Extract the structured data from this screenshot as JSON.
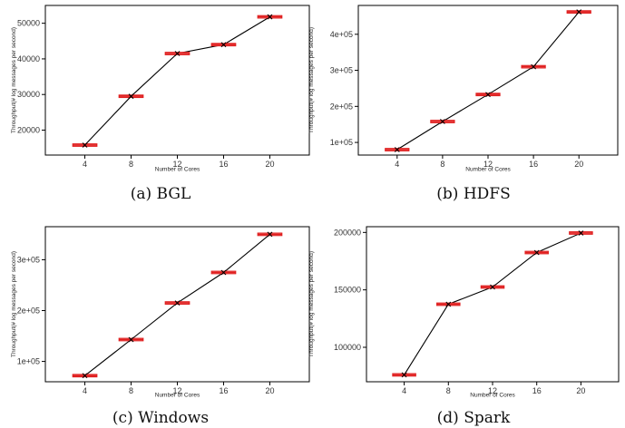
{
  "figure": {
    "panels": [
      {
        "id": "a",
        "caption": "(a) BGL"
      },
      {
        "id": "b",
        "caption": "(b) HDFS"
      },
      {
        "id": "c",
        "caption": "(c) Windows"
      },
      {
        "id": "d",
        "caption": "(d) Spark"
      }
    ]
  },
  "chart_data": [
    {
      "type": "box",
      "title": "",
      "caption": "(a) BGL",
      "xlabel": "Number of Cores",
      "ylabel": "Throughput(# log messages per second)",
      "categories": [
        "4",
        "8",
        "12",
        "16",
        "20"
      ],
      "values": [
        15800,
        29500,
        41500,
        44000,
        51800
      ],
      "ylim": [
        13000,
        55000
      ],
      "yticks": [
        20000,
        30000,
        40000,
        50000
      ],
      "ytick_labels": [
        "20000",
        "30000",
        "40000",
        "50000"
      ],
      "grid": false,
      "box_color": "#e02020",
      "line_color": "#000000"
    },
    {
      "type": "box",
      "title": "",
      "caption": "(b) HDFS",
      "xlabel": "Number of Cores",
      "ylabel": "Throughput(# log messages per second)",
      "categories": [
        "4",
        "8",
        "12",
        "16",
        "20"
      ],
      "values": [
        80000,
        158000,
        233000,
        310000,
        462000
      ],
      "ylim": [
        65000,
        480000
      ],
      "yticks": [
        100000,
        200000,
        300000,
        400000
      ],
      "ytick_labels": [
        "1e+05",
        "2e+05",
        "3e+05",
        "4e+05"
      ],
      "grid": false,
      "box_color": "#e02020",
      "line_color": "#000000"
    },
    {
      "type": "box",
      "title": "",
      "caption": "(c) Windows",
      "xlabel": "Number of Cores",
      "ylabel": "Throughput(# log messages per second)",
      "categories": [
        "4",
        "8",
        "12",
        "16",
        "20"
      ],
      "values": [
        72000,
        143000,
        215000,
        275000,
        350000
      ],
      "ylim": [
        60000,
        365000
      ],
      "yticks": [
        100000,
        200000,
        300000
      ],
      "ytick_labels": [
        "1e+05",
        "2e+05",
        "3e+05"
      ],
      "grid": false,
      "box_color": "#e02020",
      "line_color": "#000000"
    },
    {
      "type": "box",
      "title": "",
      "caption": "(d) Spark",
      "xlabel": "Number of Cores",
      "ylabel": "Throughput(# log messages per second)",
      "categories": [
        "4",
        "8",
        "12",
        "16",
        "20"
      ],
      "values": [
        76000,
        137500,
        152500,
        182500,
        199500
      ],
      "ylim": [
        70000,
        205000
      ],
      "yticks": [
        100000,
        150000,
        200000
      ],
      "ytick_labels": [
        "100000",
        "150000",
        "200000"
      ],
      "grid": false,
      "box_color": "#e02020",
      "line_color": "#000000"
    }
  ]
}
